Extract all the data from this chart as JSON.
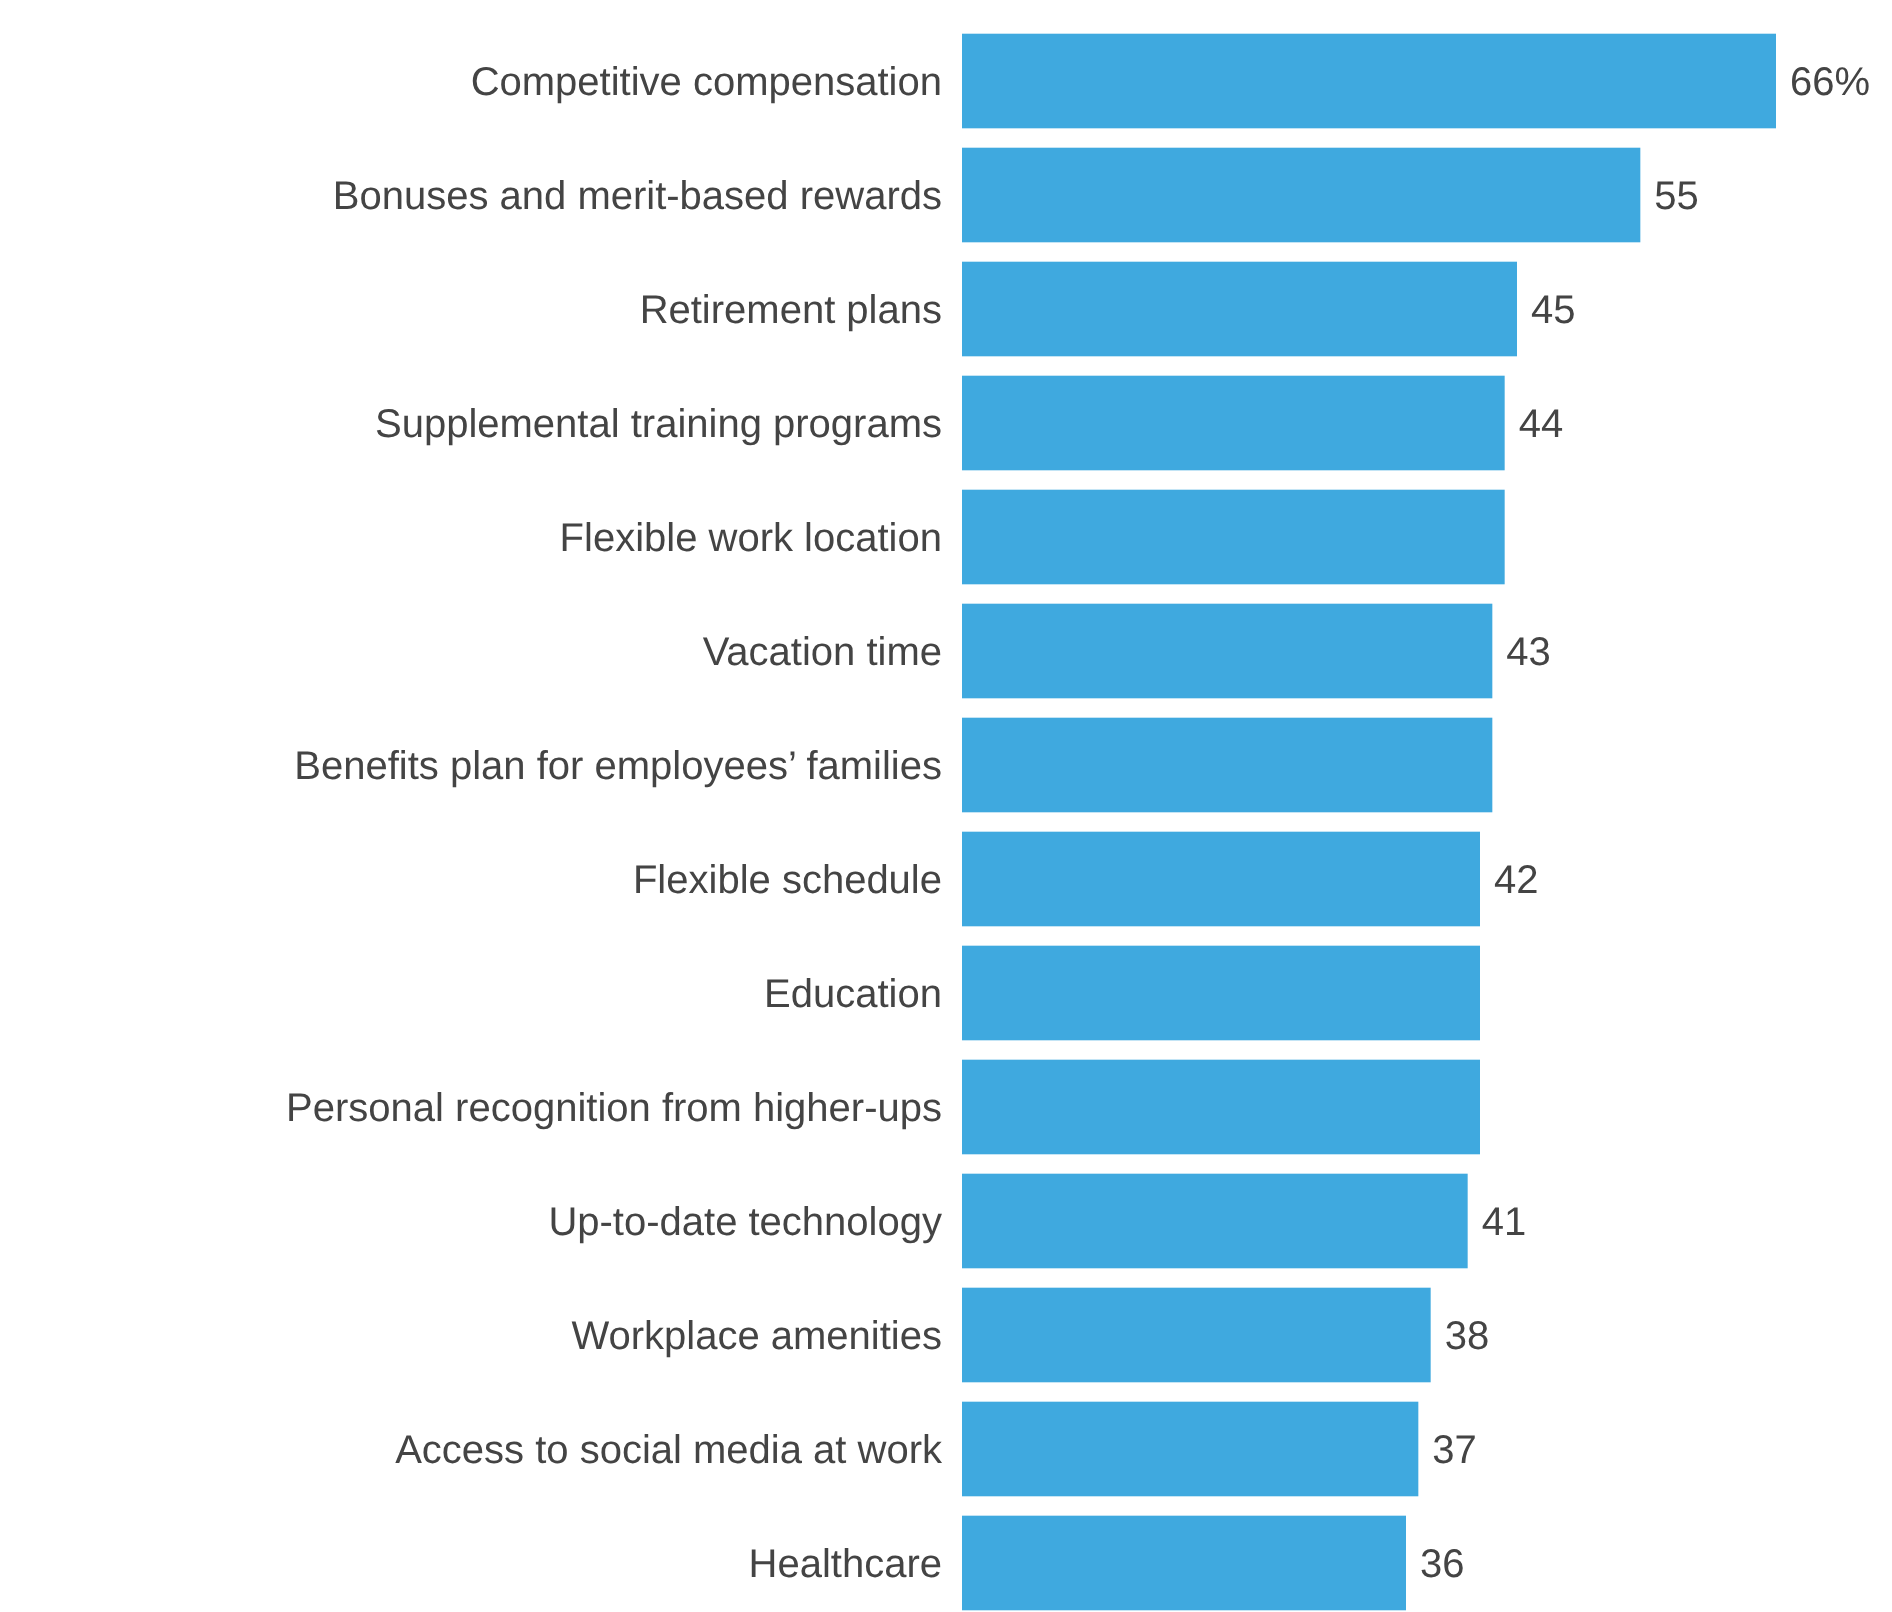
{
  "chart_data": {
    "type": "bar",
    "orientation": "horizontal",
    "color": "#3fa9df",
    "categories": [
      "Competitive compensation",
      "Bonuses and merit-based rewards",
      "Retirement plans",
      "Supplemental training programs",
      "Flexible work location",
      "Vacation time",
      "Benefits plan for employees’ families",
      "Flexible schedule",
      "Education",
      "Personal recognition from higher-ups",
      "Up-to-date technology",
      "Workplace amenities",
      "Access to social media at work",
      "Healthcare"
    ],
    "values": [
      66,
      55,
      45,
      44,
      44,
      43,
      43,
      42,
      42,
      42,
      41,
      38,
      37,
      36
    ],
    "value_labels": [
      "66%",
      "55",
      "45",
      "44",
      null,
      "43",
      null,
      "42",
      null,
      null,
      "41",
      "38",
      "37",
      "36"
    ]
  }
}
